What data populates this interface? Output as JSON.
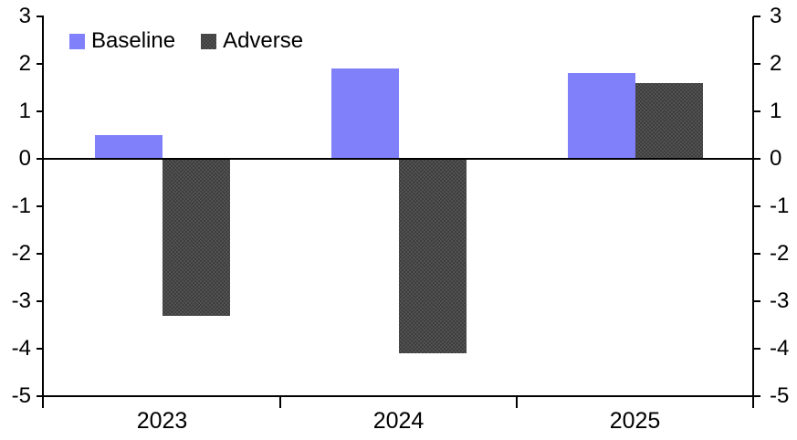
{
  "chart_data": {
    "type": "bar",
    "title": "",
    "xlabel": "",
    "ylabel": "",
    "categories": [
      "2023",
      "2024",
      "2025"
    ],
    "series": [
      {
        "name": "Baseline",
        "color": "#8080FA",
        "values": [
          0.5,
          1.9,
          1.8
        ]
      },
      {
        "name": "Adverse",
        "color": "#3E3E3E",
        "pattern": "dots",
        "pattern_dot_color": "#585858",
        "values": [
          -3.3,
          -4.1,
          1.6
        ]
      }
    ],
    "ylim": [
      -5,
      3
    ],
    "yticks": [
      3,
      2,
      1,
      0,
      -1,
      -2,
      -3,
      -4,
      -5
    ],
    "y_axis_sides": [
      "left",
      "right"
    ],
    "grid": false,
    "zero_line": true,
    "legend_position": "top-left",
    "axis_color": "#000000",
    "background_color": "#FFFFFF"
  }
}
